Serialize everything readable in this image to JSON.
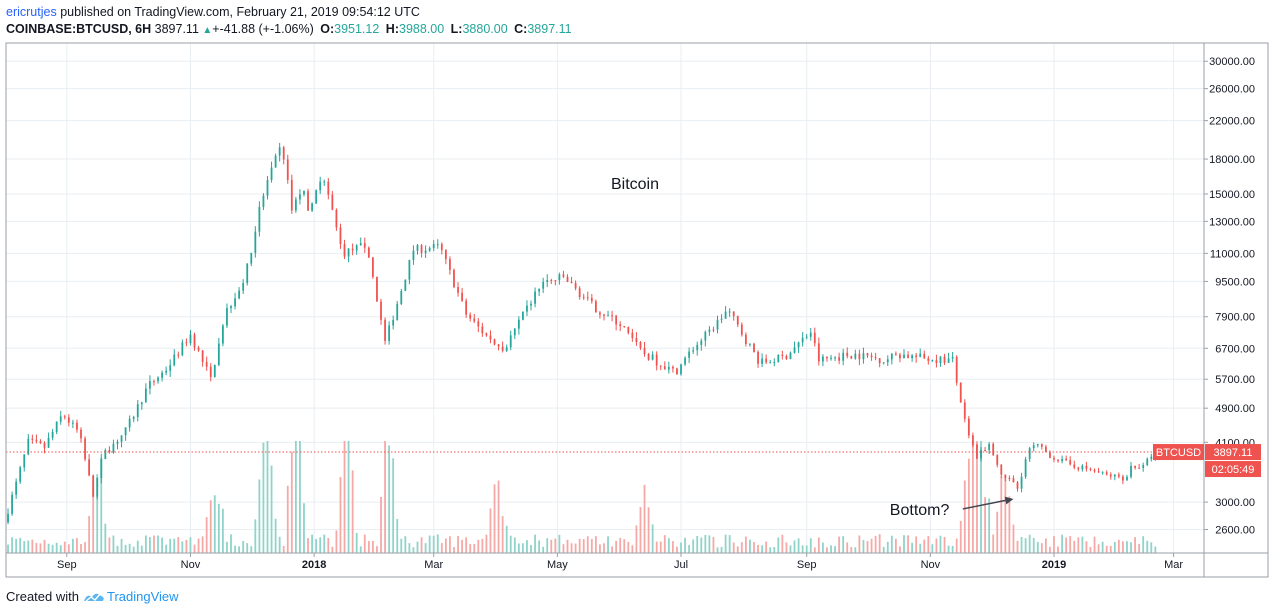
{
  "header": {
    "author": "ericrutjes",
    "published_text": "published on TradingView.com, February 21, 2019 09:54:12 UTC",
    "symbol": "COINBASE:BTCUSD, 6H",
    "last": "3897.11",
    "change": "+-41.88 (+-1.06%)",
    "open_label": "O:",
    "open": "3951.12",
    "high_label": "H:",
    "high": "3988.00",
    "low_label": "L:",
    "low": "3880.00",
    "close_label": "C:",
    "close": "3897.11"
  },
  "footer": {
    "created_with": "Created with",
    "brand": "TradingView",
    "logo_icon": "tradingview-logo-icon"
  },
  "colors": {
    "up": "#26a69a",
    "down": "#ef5350",
    "grid": "#e8eef2",
    "price_line": "#ef5350",
    "badge": "#ef5350",
    "volume_up": "#8fd3c9",
    "volume_down": "#f5a9a6"
  },
  "chart_data": {
    "type": "candlestick",
    "title": "Bitcoin",
    "scale": "log",
    "ylim": [
      2300,
      33000
    ],
    "xlim": [
      "2017-08-02",
      "2019-03-16"
    ],
    "y_ticks": [
      "30000.00",
      "26000.00",
      "22000.00",
      "18000.00",
      "15000.00",
      "13000.00",
      "11000.00",
      "9500.00",
      "7900.00",
      "6700.00",
      "5700.00",
      "4900.00",
      "4100.00",
      "3000.00",
      "2600.00"
    ],
    "x_ticks": [
      {
        "label": "Sep",
        "date": "2017-09-01",
        "bold": false
      },
      {
        "label": "Nov",
        "date": "2017-11-01",
        "bold": false
      },
      {
        "label": "2018",
        "date": "2018-01-01",
        "bold": true
      },
      {
        "label": "Mar",
        "date": "2018-03-01",
        "bold": false
      },
      {
        "label": "May",
        "date": "2018-05-01",
        "bold": false
      },
      {
        "label": "Jul",
        "date": "2018-07-01",
        "bold": false
      },
      {
        "label": "Sep",
        "date": "2018-09-01",
        "bold": false
      },
      {
        "label": "Nov",
        "date": "2018-11-01",
        "bold": false
      },
      {
        "label": "2019",
        "date": "2019-01-01",
        "bold": true
      },
      {
        "label": "Mar",
        "date": "2019-03-01",
        "bold": false
      }
    ],
    "price_path": [
      [
        "2017-08-02",
        2700
      ],
      [
        "2017-08-08",
        3300
      ],
      [
        "2017-08-14",
        4100
      ],
      [
        "2017-08-22",
        4000
      ],
      [
        "2017-08-31",
        4750
      ],
      [
        "2017-09-08",
        4300
      ],
      [
        "2017-09-15",
        3100
      ],
      [
        "2017-09-20",
        3850
      ],
      [
        "2017-10-01",
        4350
      ],
      [
        "2017-10-12",
        5500
      ],
      [
        "2017-10-21",
        6000
      ],
      [
        "2017-11-02",
        7200
      ],
      [
        "2017-11-12",
        5700
      ],
      [
        "2017-11-20",
        8200
      ],
      [
        "2017-11-29",
        9700
      ],
      [
        "2017-12-07",
        14500
      ],
      [
        "2017-12-11",
        16500
      ],
      [
        "2017-12-17",
        19500
      ],
      [
        "2017-12-22",
        13800
      ],
      [
        "2017-12-27",
        15500
      ],
      [
        "2017-12-31",
        13500
      ],
      [
        "2018-01-06",
        17000
      ],
      [
        "2018-01-16",
        11000
      ],
      [
        "2018-01-28",
        11500
      ],
      [
        "2018-02-06",
        6900
      ],
      [
        "2018-02-20",
        11200
      ],
      [
        "2018-03-05",
        11400
      ],
      [
        "2018-03-18",
        8000
      ],
      [
        "2018-03-31",
        6900
      ],
      [
        "2018-04-06",
        6700
      ],
      [
        "2018-04-24",
        9400
      ],
      [
        "2018-05-05",
        9700
      ],
      [
        "2018-05-20",
        8300
      ],
      [
        "2018-06-02",
        7600
      ],
      [
        "2018-06-12",
        6600
      ],
      [
        "2018-06-29",
        5900
      ],
      [
        "2018-07-08",
        6700
      ],
      [
        "2018-07-17",
        7400
      ],
      [
        "2018-07-25",
        8200
      ],
      [
        "2018-08-10",
        6200
      ],
      [
        "2018-08-22",
        6400
      ],
      [
        "2018-09-04",
        7300
      ],
      [
        "2018-09-08",
        6300
      ],
      [
        "2018-09-25",
        6500
      ],
      [
        "2018-10-11",
        6300
      ],
      [
        "2018-10-16",
        6500
      ],
      [
        "2018-10-31",
        6350
      ],
      [
        "2018-11-13",
        6300
      ],
      [
        "2018-11-15",
        5600
      ],
      [
        "2018-11-20",
        4400
      ],
      [
        "2018-11-25",
        3800
      ],
      [
        "2018-12-01",
        4100
      ],
      [
        "2018-12-07",
        3500
      ],
      [
        "2018-12-15",
        3220
      ],
      [
        "2018-12-20",
        3900
      ],
      [
        "2018-12-24",
        4050
      ],
      [
        "2019-01-01",
        3800
      ],
      [
        "2019-01-10",
        3650
      ],
      [
        "2019-01-20",
        3550
      ],
      [
        "2019-01-28",
        3450
      ],
      [
        "2019-02-07",
        3400
      ],
      [
        "2019-02-09",
        3630
      ],
      [
        "2019-02-15",
        3600
      ],
      [
        "2019-02-20",
        3897
      ]
    ],
    "volume_spikes": [
      [
        "2017-09-15",
        1.0
      ],
      [
        "2017-11-12",
        0.9
      ],
      [
        "2017-12-07",
        1.25
      ],
      [
        "2017-12-22",
        1.7
      ],
      [
        "2018-01-16",
        1.15
      ],
      [
        "2018-02-06",
        1.35
      ],
      [
        "2018-03-31",
        0.85
      ],
      [
        "2018-06-12",
        0.55
      ],
      [
        "2018-11-20",
        1.05
      ],
      [
        "2018-11-25",
        1.25
      ],
      [
        "2018-12-07",
        0.8
      ]
    ],
    "last_price": 3897.11,
    "last_price_label": "3897.11",
    "symbol_label": "BTCUSD",
    "countdown_label": "02:05:49",
    "annotations": [
      {
        "text": "Bottom?",
        "label_date": "2018-10-12",
        "label_price": 2880,
        "target_date": "2018-12-12",
        "target_price": 3050
      }
    ]
  }
}
